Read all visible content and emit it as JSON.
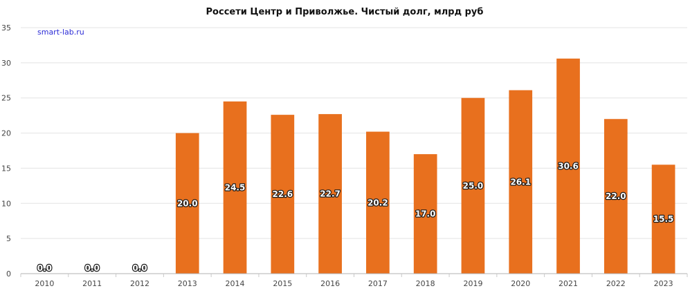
{
  "watermark": "smart-lab.ru",
  "chart_data": {
    "type": "bar",
    "title": "Россети Центр и Приволжье. Чистый долг, млрд руб",
    "xlabel": "",
    "ylabel": "",
    "categories": [
      "2010",
      "2011",
      "2012",
      "2013",
      "2014",
      "2015",
      "2016",
      "2017",
      "2018",
      "2019",
      "2020",
      "2021",
      "2022",
      "2023"
    ],
    "values": [
      0.0,
      0.0,
      0.0,
      20.0,
      24.5,
      22.6,
      22.7,
      20.2,
      17.0,
      25.0,
      26.1,
      30.6,
      22.0,
      15.5
    ],
    "data_labels": [
      "0.0",
      "0.0",
      "0.0",
      "20.0",
      "24.5",
      "22.6",
      "22.7",
      "20.2",
      "17.0",
      "25.0",
      "26.1",
      "30.6",
      "22.0",
      "15.5"
    ],
    "yticks": [
      "0",
      "5",
      "10",
      "15",
      "20",
      "25",
      "30",
      "35"
    ],
    "ylim": [
      0,
      35
    ],
    "grid": true,
    "legend": "none",
    "bar_color": "#e8701e"
  }
}
